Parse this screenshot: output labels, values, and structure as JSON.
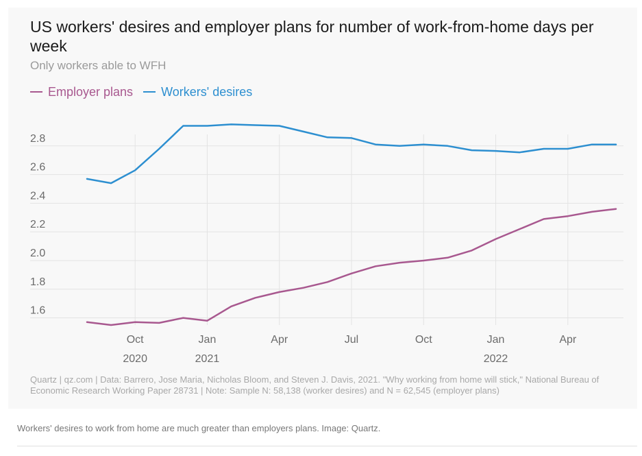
{
  "chart_data": {
    "type": "line",
    "title": "US workers' desires and employer plans for number of work-from-home days per week",
    "subtitle": "Only workers able to WFH",
    "x": [
      "2020-08",
      "2020-09",
      "2020-10",
      "2020-11",
      "2020-12",
      "2021-01",
      "2021-02",
      "2021-03",
      "2021-04",
      "2021-05",
      "2021-06",
      "2021-07",
      "2021-08",
      "2021-09",
      "2021-10",
      "2021-11",
      "2021-12",
      "2022-01",
      "2022-02",
      "2022-03",
      "2022-04",
      "2022-05",
      "2022-06"
    ],
    "series": [
      {
        "name": "Employer plans",
        "color": "#a8588f",
        "values": [
          1.57,
          1.55,
          1.57,
          1.565,
          1.6,
          1.58,
          1.68,
          1.74,
          1.78,
          1.81,
          1.85,
          1.91,
          1.96,
          1.985,
          2.0,
          2.02,
          2.07,
          2.15,
          2.22,
          2.29,
          2.31,
          2.34,
          2.36
        ]
      },
      {
        "name": "Workers' desires",
        "color": "#2d8fd0",
        "values": [
          2.57,
          2.54,
          2.63,
          2.78,
          2.94,
          2.94,
          2.95,
          2.945,
          2.94,
          2.9,
          2.86,
          2.855,
          2.81,
          2.8,
          2.81,
          2.8,
          2.77,
          2.765,
          2.755,
          2.78,
          2.78,
          2.81,
          2.81
        ]
      }
    ],
    "y_ticks": [
      "1.6",
      "1.8",
      "2.0",
      "2.2",
      "2.4",
      "2.6",
      "2.8"
    ],
    "x_ticks": [
      {
        "month": "Oct",
        "year": "2020",
        "at": "2020-10"
      },
      {
        "month": "Jan",
        "year": "2021",
        "at": "2021-01"
      },
      {
        "month": "Apr",
        "year": "",
        "at": "2021-04"
      },
      {
        "month": "Jul",
        "year": "",
        "at": "2021-07"
      },
      {
        "month": "Oct",
        "year": "",
        "at": "2021-10"
      },
      {
        "month": "Jan",
        "year": "2022",
        "at": "2022-01"
      },
      {
        "month": "Apr",
        "year": "",
        "at": "2022-04"
      }
    ],
    "ylim": [
      1.55,
      3.0
    ],
    "grid": true,
    "legend_position": "top-left"
  },
  "source": "Quartz | qz.com | Data: Barrero, Jose Maria, Nicholas Bloom, and Steven J. Davis, 2021. \"Why working from home will stick,\" National Bureau of Economic Research Working Paper 28731 | Note: Sample N: 58,138 (worker desires) and N = 62,545 (employer plans)",
  "caption": "Workers' desires to work from home are much greater than employers plans. Image: Quartz."
}
